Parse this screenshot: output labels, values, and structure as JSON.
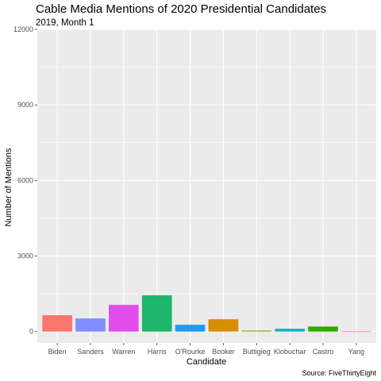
{
  "chart_data": {
    "type": "bar",
    "title": "Cable Media Mentions of 2020 Presidential Candidates",
    "subtitle": "2019, Month 1",
    "xlabel": "Candidate",
    "ylabel": "Number of Mentions",
    "caption": "Source: FiveThirtyEight",
    "categories": [
      "Biden",
      "Sanders",
      "Warren",
      "Harris",
      "O'Rourke",
      "Booker",
      "Buttigieg",
      "Klobuchar",
      "Castro",
      "Yang"
    ],
    "values": [
      650,
      520,
      1060,
      1440,
      270,
      490,
      40,
      110,
      200,
      10
    ],
    "colors": [
      "#F8766D",
      "#7F8DFF",
      "#E14DEB",
      "#1DB66B",
      "#1F9CF0",
      "#D68F00",
      "#9AA319",
      "#17ACBF",
      "#2EAA00",
      "#FF6F98"
    ],
    "y_ticks": [
      0,
      3000,
      6000,
      9000,
      12000
    ],
    "y_tick_labels": [
      "0",
      "3000",
      "6000",
      "9000",
      "12000"
    ],
    "ylim": [
      -450,
      12000
    ],
    "grid": true,
    "panel_background": "#EBEBEB",
    "grid_color": "#FFFFFF",
    "legend": "none"
  }
}
